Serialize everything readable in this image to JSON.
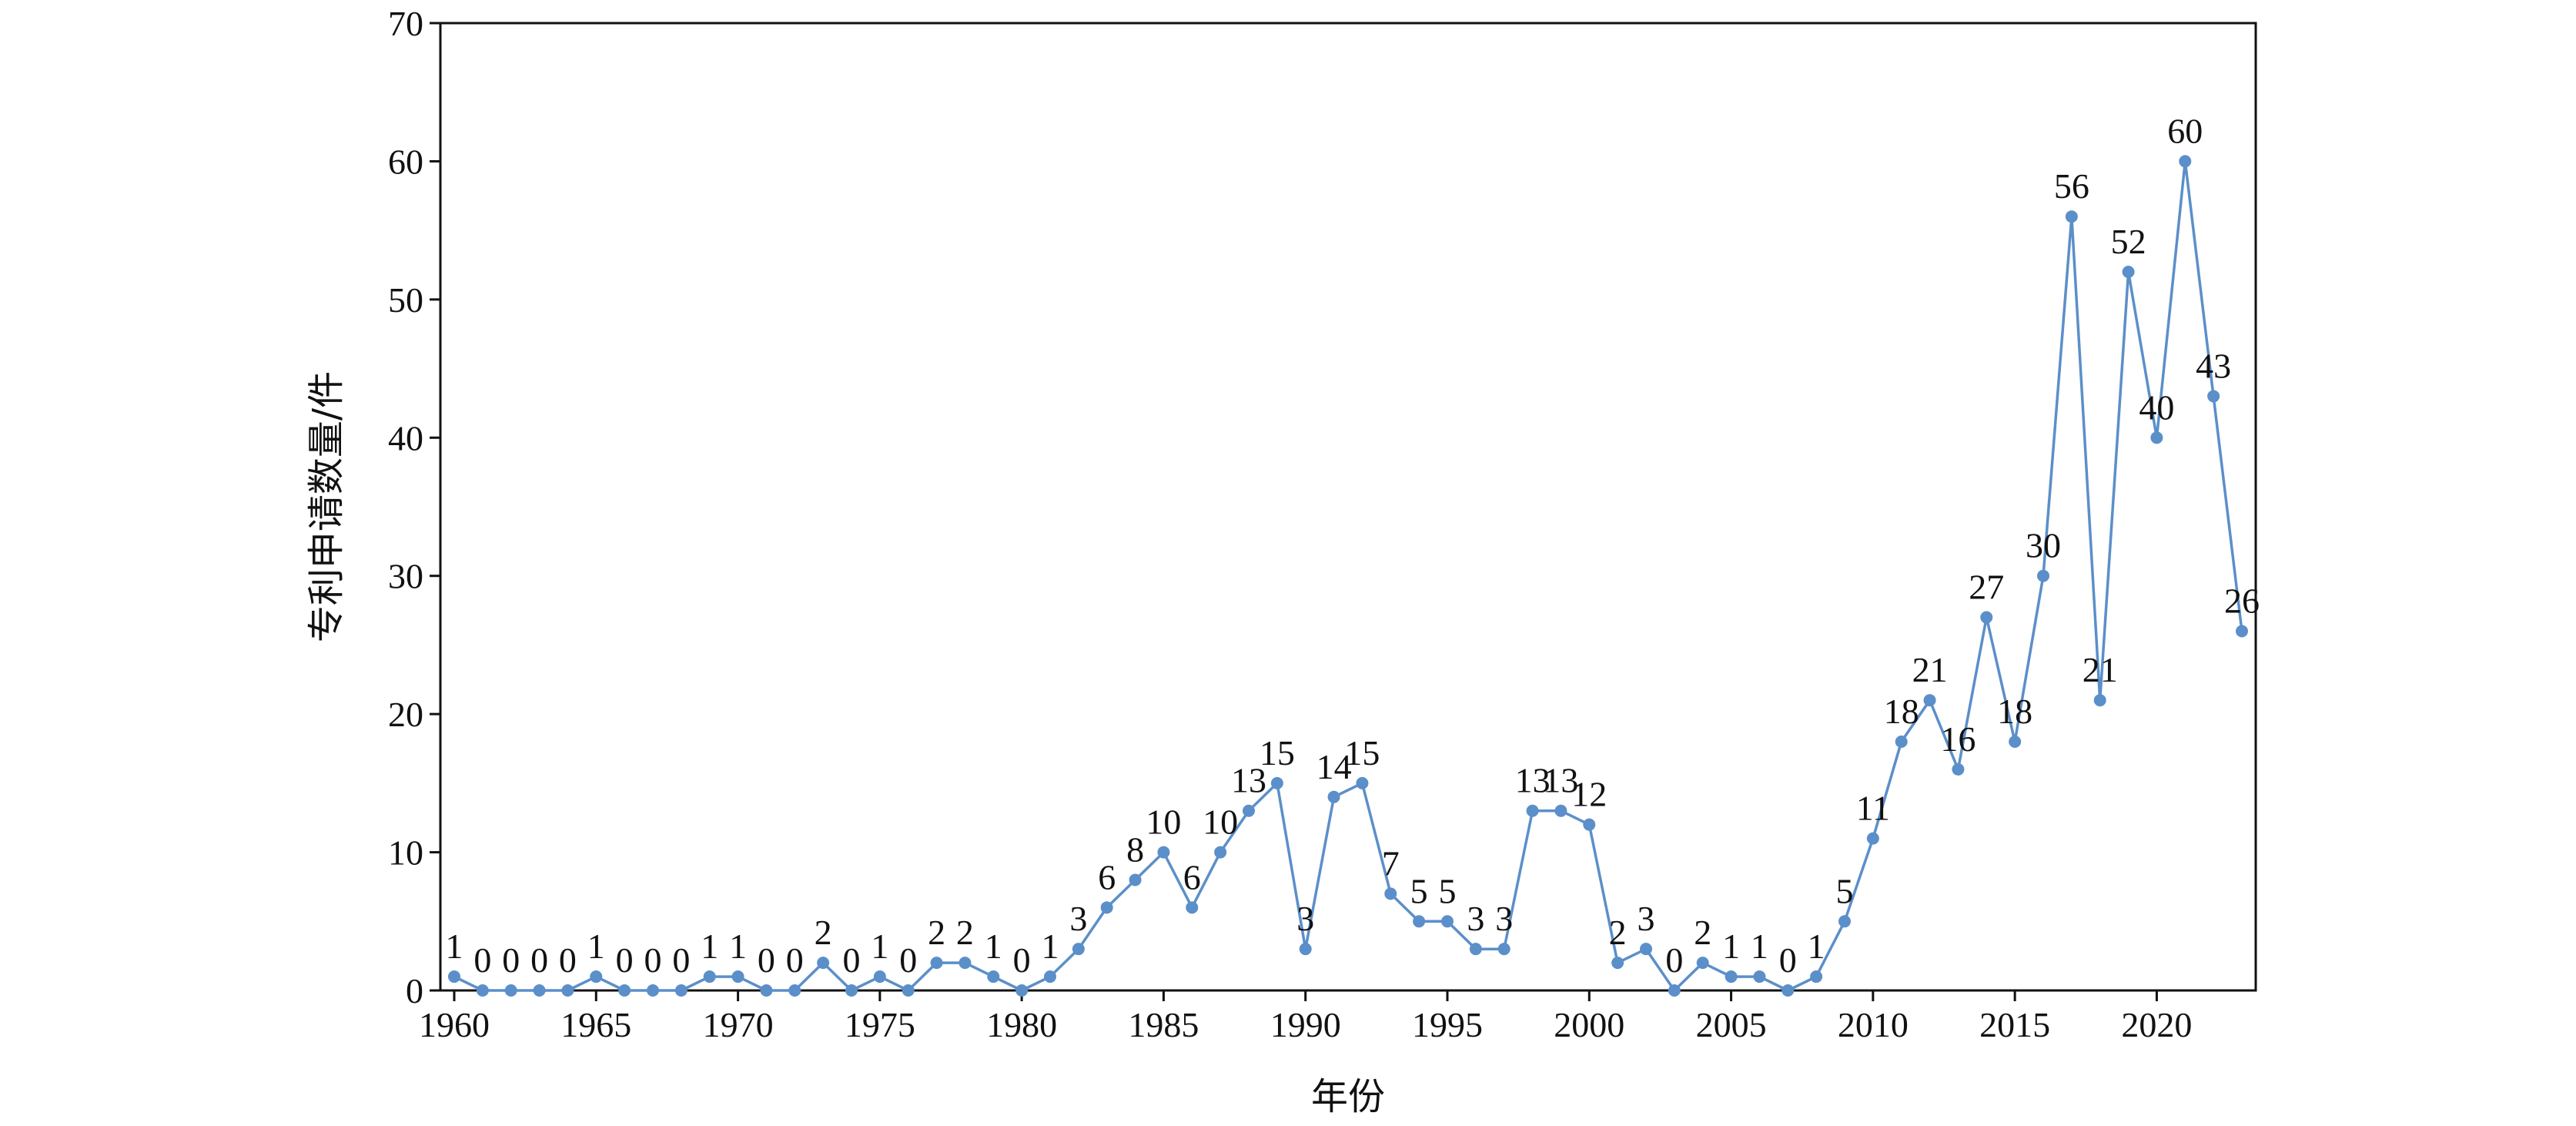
{
  "chart_data": {
    "type": "line",
    "xlabel": "年份",
    "ylabel": "专利申请数量/件",
    "xlim": [
      1960,
      2023
    ],
    "ylim": [
      0,
      70
    ],
    "x_ticks": [
      1960,
      1965,
      1970,
      1975,
      1980,
      1985,
      1990,
      1995,
      2000,
      2005,
      2010,
      2015,
      2020
    ],
    "y_ticks": [
      0,
      10,
      20,
      30,
      40,
      50,
      60,
      70
    ],
    "grid": false,
    "color": "#5b8fc9",
    "x": [
      1960,
      1961,
      1962,
      1963,
      1964,
      1965,
      1966,
      1967,
      1968,
      1969,
      1970,
      1971,
      1972,
      1973,
      1974,
      1975,
      1976,
      1977,
      1978,
      1979,
      1980,
      1981,
      1982,
      1983,
      1984,
      1985,
      1986,
      1987,
      1988,
      1989,
      1990,
      1991,
      1992,
      1993,
      1994,
      1995,
      1996,
      1997,
      1998,
      1999,
      2000,
      2001,
      2002,
      2003,
      2004,
      2005,
      2006,
      2007,
      2008,
      2009,
      2010,
      2011,
      2012,
      2013,
      2014,
      2015,
      2016,
      2017,
      2018,
      2019,
      2020,
      2021,
      2022,
      2023
    ],
    "values": [
      1,
      0,
      0,
      0,
      0,
      1,
      0,
      0,
      0,
      1,
      1,
      0,
      0,
      2,
      0,
      1,
      0,
      2,
      2,
      1,
      0,
      1,
      3,
      6,
      8,
      10,
      6,
      10,
      13,
      15,
      3,
      14,
      15,
      7,
      5,
      5,
      3,
      3,
      13,
      13,
      12,
      2,
      3,
      0,
      2,
      1,
      1,
      0,
      1,
      5,
      11,
      18,
      21,
      16,
      27,
      18,
      30,
      56,
      21,
      52,
      40,
      60,
      43,
      26
    ]
  }
}
